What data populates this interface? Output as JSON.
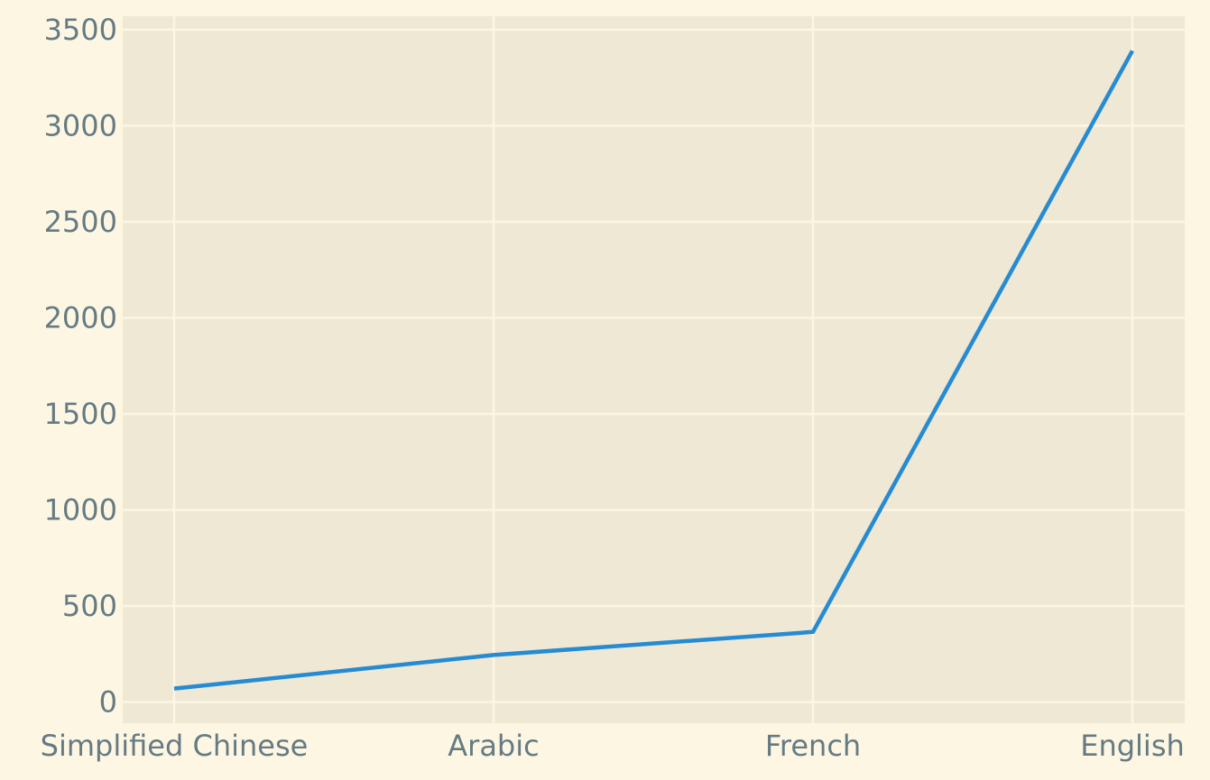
{
  "chart_data": {
    "type": "line",
    "categories": [
      "Simplified Chinese",
      "Arabic",
      "French",
      "English"
    ],
    "series": [
      {
        "values": [
          70,
          245,
          365,
          3390
        ],
        "color": "#268bd2"
      }
    ],
    "ylim": [
      -110,
      3570
    ],
    "yticks": [
      0,
      500,
      1000,
      1500,
      2000,
      2500,
      3000,
      3500
    ],
    "ytick_labels": [
      "0",
      "500",
      "1000",
      "1500",
      "2000",
      "2500",
      "3000",
      "3500"
    ],
    "xlabel": "",
    "ylabel": "",
    "grid": true,
    "colors": {
      "figure_background": "#fdf6e3",
      "plot_background": "#eee8d5",
      "grid": "#fdf6e3",
      "tick_text": "#657b83"
    }
  }
}
